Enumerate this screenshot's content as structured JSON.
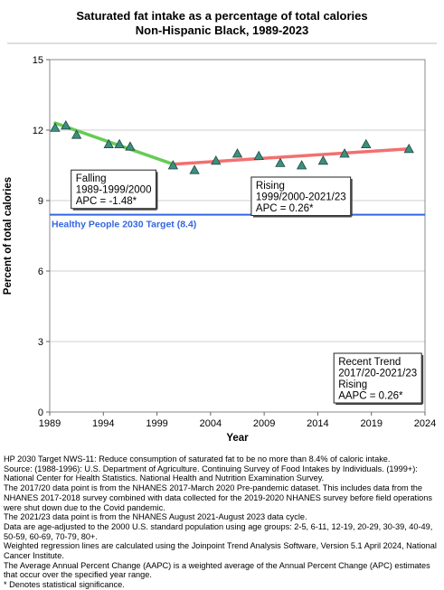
{
  "chart_data": {
    "type": "scatter",
    "title": "Saturated fat intake as a percentage of total calories",
    "subtitle": "Non-Hispanic Black,  1989-2023",
    "xlabel": "Year",
    "ylabel": "Percent of total calories",
    "xlim": [
      1989,
      2024
    ],
    "ylim": [
      0,
      15
    ],
    "xticks": [
      1989,
      1994,
      1999,
      2004,
      2009,
      2014,
      2019,
      2024
    ],
    "yticks": [
      0,
      3,
      6,
      9,
      12,
      15
    ],
    "grid": true,
    "series": [
      {
        "marker": "triangle",
        "color": "#3d8f7f",
        "points": [
          [
            1989.5,
            12.1
          ],
          [
            1990.5,
            12.2
          ],
          [
            1991.5,
            11.8
          ],
          [
            1994.5,
            11.4
          ],
          [
            1995.5,
            11.4
          ],
          [
            1996.5,
            11.3
          ],
          [
            2000.5,
            10.5
          ],
          [
            2002.5,
            10.3
          ],
          [
            2004.5,
            10.7
          ],
          [
            2006.5,
            11.0
          ],
          [
            2008.5,
            10.9
          ],
          [
            2010.5,
            10.6
          ],
          [
            2012.5,
            10.5
          ],
          [
            2014.5,
            10.7
          ],
          [
            2016.5,
            11.0
          ],
          [
            2018.5,
            11.4
          ],
          [
            2022.5,
            11.2
          ]
        ]
      }
    ],
    "trend_lines": [
      {
        "color": "#66cc55",
        "x": [
          1989.5,
          2000.5
        ],
        "y": [
          12.3,
          10.55
        ]
      },
      {
        "color": "#f27070",
        "x": [
          2000.5,
          2022.5
        ],
        "y": [
          10.55,
          11.2
        ]
      }
    ],
    "target_line": {
      "value": 8.4,
      "label": "Healthy People 2030 Target (8.4)",
      "color": "#3366e0"
    },
    "annotations": [
      {
        "id": "falling",
        "anchor_x": 1991.0,
        "anchor_y": 10.3,
        "lines": [
          "Falling",
          "1989-1999/2000",
          "APC = -1.48*"
        ]
      },
      {
        "id": "rising",
        "anchor_x": 2007.8,
        "anchor_y": 10.0,
        "lines": [
          "Rising",
          "1999/2000-2021/23",
          "APC =  0.26*"
        ]
      },
      {
        "id": "recent",
        "anchor_x": 2015.5,
        "anchor_y": 2.5,
        "lines": [
          "Recent Trend",
          "2017/20-2021/23",
          "Rising",
          "AAPC =  0.26*"
        ]
      }
    ]
  },
  "footnotes": [
    "HP 2030 Target NWS-11: Reduce consumption of saturated fat to be no more than 8.4% of caloric intake.",
    "Source: (1988-1996): U.S. Department of Agriculture. Continuing Survey of Food Intakes by Individuals. (1999+): National Center for Health Statistics. National Health and Nutrition Examination Survey.",
    "The 2017/20 data point is from the NHANES 2017-March 2020 Pre-pandemic dataset. This includes data from the NHANES 2017-2018 survey combined with data collected for the 2019-2020 NHANES survey before field operations were shut down due to the Covid pandemic.",
    "The 2021/23 data point is from the NHANES August 2021-August 2023 data cycle.",
    "Data are age-adjusted to the 2000 U.S. standard population using age groups: 2-5, 6-11, 12-19, 20-29, 30-39, 40-49, 50-59, 60-69, 70-79, 80+.",
    "Weighted regression lines are calculated using the Joinpoint Trend Analysis Software, Version 5.1 April 2024, National Cancer Institute.",
    "The Average Annual Percent Change (AAPC) is a weighted average of the Annual Percent Change (APC) estimates that occur over the specified year range.",
    "* Denotes statistical significance."
  ]
}
